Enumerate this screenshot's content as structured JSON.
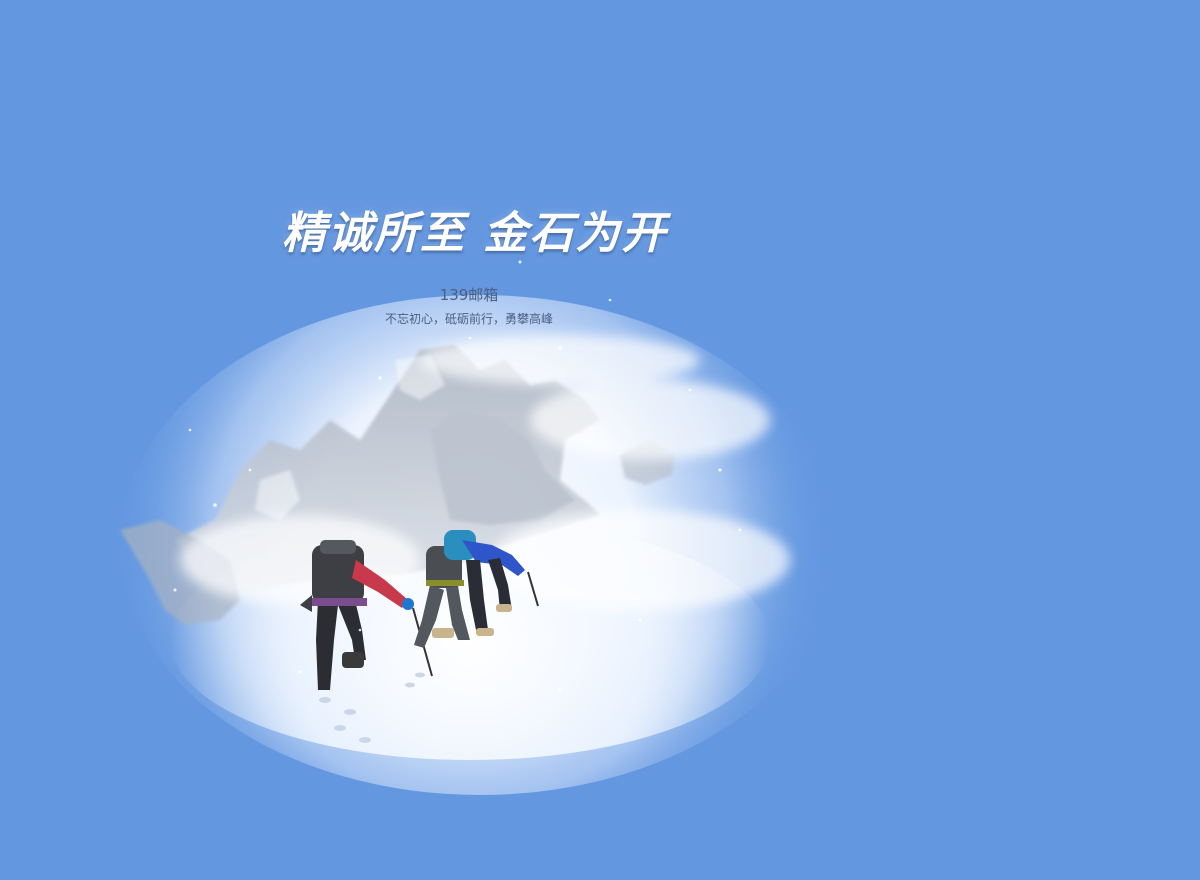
{
  "colors": {
    "background": "#6397e0",
    "headline": "#ffffff",
    "subtext": "#4b5f80"
  },
  "hero": {
    "headline": "精诚所至 金石为开",
    "brand": "139邮箱",
    "slogan": "不忘初心，砥砺前行，勇攀高峰"
  },
  "illustration": {
    "icon": "mountain-climbers-illustration"
  }
}
